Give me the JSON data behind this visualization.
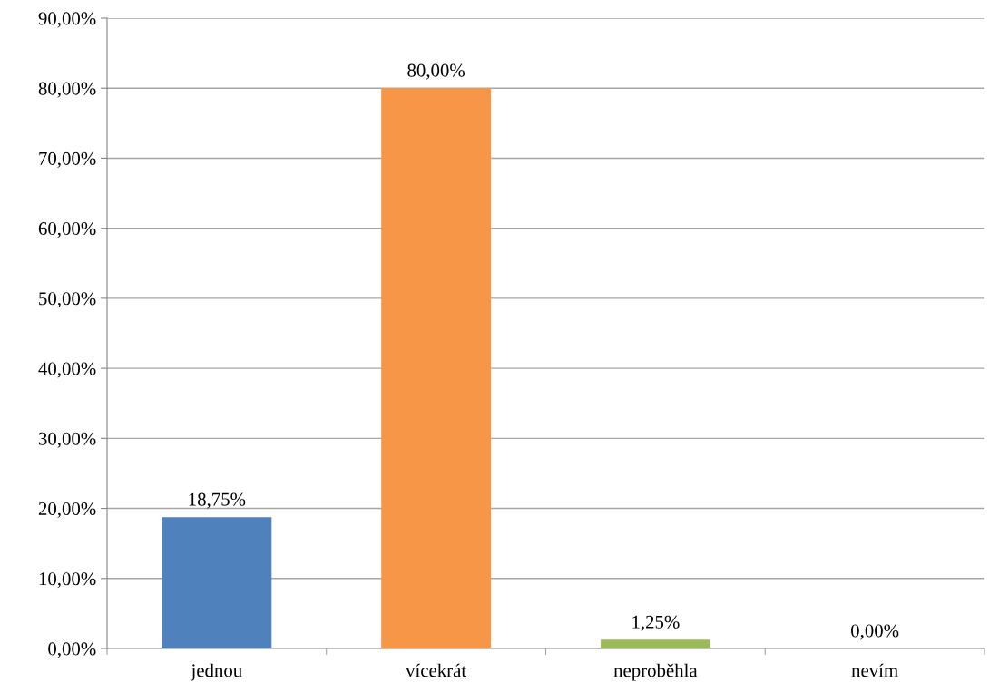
{
  "chart_data": {
    "type": "bar",
    "categories": [
      "jednou",
      "vícekrát",
      "neproběhla",
      "nevím"
    ],
    "values": [
      18.75,
      80,
      1.25,
      0
    ],
    "colors": [
      "#4f81bd",
      "#f79646",
      "#9bbb59",
      "#8064a2"
    ],
    "value_labels": [
      "18,75%",
      "80,00%",
      "1,25%",
      "0,00%"
    ],
    "ylim": [
      0,
      90
    ],
    "yticks": [
      {
        "value": 0,
        "label": "0,00%"
      },
      {
        "value": 10,
        "label": "10,00%"
      },
      {
        "value": 20,
        "label": "20,00%"
      },
      {
        "value": 30,
        "label": "30,00%"
      },
      {
        "value": 40,
        "label": "40,00%"
      },
      {
        "value": 50,
        "label": "50,00%"
      },
      {
        "value": 60,
        "label": "60,00%"
      },
      {
        "value": 70,
        "label": "70,00%"
      },
      {
        "value": 80,
        "label": "80,00%"
      },
      {
        "value": 90,
        "label": "90,00%"
      }
    ],
    "grid": "y",
    "legend": false
  }
}
